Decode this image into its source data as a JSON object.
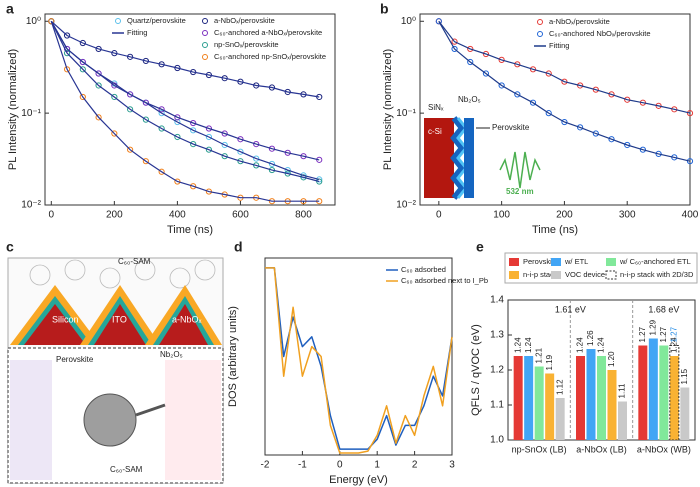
{
  "panel_labels": [
    "a",
    "b",
    "c",
    "d",
    "e"
  ],
  "diagram_c": {
    "sam_top": "C₆₀-SAM",
    "silicon": "Silicon",
    "ito": "ITO",
    "nbox": "a-NbOₓ",
    "perovskite": "Perovskite",
    "nb2o5": "Nb₂O₅",
    "sam_bottom": "C₆₀-SAM"
  },
  "chart_data": [
    {
      "type": "scatter",
      "xlabel": "Time (ns)",
      "ylabel": "PL Intensity (normalized)",
      "x": [
        0,
        50,
        100,
        150,
        200,
        250,
        300,
        350,
        400,
        450,
        500,
        550,
        600,
        650,
        700,
        750,
        800,
        850
      ],
      "xlim": [
        -20,
        900
      ],
      "xticks": [
        0,
        200,
        400,
        600,
        800
      ],
      "log_y": true,
      "ylim": [
        0.01,
        1.2
      ],
      "yticks": [
        {
          "value": 0.01,
          "label": "10⁻²"
        },
        {
          "value": 0.1,
          "label": "10⁻¹"
        },
        {
          "value": 1,
          "label": "10⁰"
        }
      ],
      "fit_label": "Fitting",
      "fit_color": "#283593",
      "series": [
        {
          "name": "Quartz/perovskite",
          "color": "#5bc0eb",
          "values": [
            1.0,
            0.5,
            0.36,
            0.27,
            0.21,
            0.16,
            0.13,
            0.1,
            0.08,
            0.065,
            0.055,
            0.045,
            0.038,
            0.032,
            0.028,
            0.024,
            0.021,
            0.019
          ]
        },
        {
          "name": "a-NbOₓ/perovskite",
          "color": "#1a237e",
          "values": [
            1.0,
            0.7,
            0.58,
            0.5,
            0.45,
            0.41,
            0.37,
            0.34,
            0.31,
            0.28,
            0.26,
            0.24,
            0.22,
            0.2,
            0.19,
            0.17,
            0.16,
            0.15
          ]
        },
        {
          "name": "C₆₀-anchored a-NbOₓ/perovskite",
          "color": "#7b2fbf",
          "values": [
            1.0,
            0.5,
            0.36,
            0.27,
            0.2,
            0.16,
            0.13,
            0.11,
            0.09,
            0.078,
            0.068,
            0.06,
            0.052,
            0.046,
            0.041,
            0.037,
            0.034,
            0.031
          ]
        },
        {
          "name": "np-SnOₓ/perovskite",
          "color": "#2a9d8f",
          "values": [
            1.0,
            0.45,
            0.3,
            0.2,
            0.15,
            0.11,
            0.085,
            0.068,
            0.055,
            0.046,
            0.04,
            0.034,
            0.03,
            0.027,
            0.024,
            0.022,
            0.02,
            0.018
          ]
        },
        {
          "name": "C₆₀-anchored np-SnOₓ/perovskite",
          "color": "#f07f1a",
          "values": [
            1.0,
            0.3,
            0.15,
            0.09,
            0.06,
            0.04,
            0.03,
            0.023,
            0.018,
            0.016,
            0.014,
            0.013,
            0.012,
            0.012,
            0.011,
            0.011,
            0.011,
            0.011
          ]
        }
      ]
    },
    {
      "type": "scatter",
      "xlabel": "Time (ns)",
      "ylabel": "PL Intensity (normalized)",
      "x": [
        0,
        25,
        50,
        75,
        100,
        125,
        150,
        175,
        200,
        225,
        250,
        275,
        300,
        325,
        350,
        375,
        400
      ],
      "xlim": [
        -30,
        400
      ],
      "xticks": [
        0,
        100,
        200,
        300,
        400
      ],
      "log_y": true,
      "ylim": [
        0.01,
        1.2
      ],
      "yticks": [
        {
          "value": 0.01,
          "label": "10⁻²"
        },
        {
          "value": 0.1,
          "label": "10⁻¹"
        },
        {
          "value": 1,
          "label": "10⁰"
        }
      ],
      "fit_label": "Fitting",
      "fit_color": "#1e3a8a",
      "annotations": [
        "SiNₓ",
        "Nb₂O₅",
        "c-Si",
        "Perovskite",
        "532 nm"
      ],
      "series": [
        {
          "name": "a-NbOₓ/perovskite",
          "color": "#e53935",
          "values": [
            1.0,
            0.6,
            0.5,
            0.44,
            0.38,
            0.34,
            0.3,
            0.27,
            0.22,
            0.2,
            0.18,
            0.16,
            0.14,
            0.13,
            0.12,
            0.11,
            0.1
          ]
        },
        {
          "name": "C₆₀-anchored NbOₓ/perovskite",
          "color": "#1e63d6",
          "values": [
            1.0,
            0.5,
            0.36,
            0.27,
            0.2,
            0.16,
            0.13,
            0.1,
            0.08,
            0.07,
            0.06,
            0.052,
            0.045,
            0.04,
            0.036,
            0.033,
            0.03
          ]
        }
      ]
    },
    {
      "type": "line",
      "xlabel": "Energy (eV)",
      "ylabel": "DOS (arbitrary units)",
      "x": [
        -2,
        -1.75,
        -1.5,
        -1.25,
        -1,
        -0.75,
        -0.5,
        -0.25,
        0,
        0.25,
        0.5,
        0.75,
        1,
        1.25,
        1.5,
        1.75,
        2,
        2.25,
        2.5,
        2.75,
        3
      ],
      "xlim": [
        -2,
        3
      ],
      "xticks": [
        -2,
        -1,
        0,
        1,
        2,
        3
      ],
      "ylim": [
        0,
        10
      ],
      "series": [
        {
          "name": "C₆₀ adsorbed",
          "color": "#1f5fbf",
          "values": [
            9.5,
            9.5,
            5,
            7,
            5.5,
            6,
            4.5,
            2,
            0.3,
            0.3,
            0.3,
            0.3,
            0.8,
            2,
            0.5,
            1.5,
            1.5,
            2.5,
            4,
            3,
            6
          ]
        },
        {
          "name": "C₆₀ adsorbed next to I_Pb",
          "color": "#f0a020",
          "values": [
            9.5,
            9.5,
            4,
            7.5,
            4,
            5.5,
            5,
            1.5,
            0.1,
            0.1,
            0.1,
            0.2,
            1,
            2.5,
            0.6,
            2,
            1,
            3,
            4.5,
            2.5,
            6
          ]
        }
      ]
    },
    {
      "type": "bar",
      "ylabel": "QFLS / qVOC (eV)",
      "categories": [
        "np-SnOx (LB)",
        "a-NbOx (LB)",
        "a-NbOx (WB)"
      ],
      "ylim": [
        1.0,
        1.4
      ],
      "yticks": [
        {
          "value": 1.0,
          "label": "1.0"
        },
        1.1,
        1.2,
        1.3,
        1.4
      ],
      "annotations": [
        "1.61 eV",
        "1.68 eV"
      ],
      "series": [
        {
          "name": "Perovskite",
          "color": "#e53935",
          "values": [
            1.24,
            1.24,
            1.27
          ],
          "value_labels": [
            "1.24",
            "1.24",
            "1.27"
          ]
        },
        {
          "name": "w/ ETL",
          "color": "#42a5f5",
          "values": [
            1.24,
            1.26,
            1.29
          ],
          "value_labels": [
            "1.24",
            "1.26",
            "1.29"
          ]
        },
        {
          "name": "w/ C₆₀-anchored ETL",
          "color": "#81e89a",
          "values": [
            1.21,
            1.24,
            1.27
          ],
          "value_labels": [
            "1.21",
            "1.24",
            "1.27"
          ]
        },
        {
          "name": "n-i-p stack",
          "color": "#f9b233",
          "values": [
            1.19,
            1.2,
            1.24
          ],
          "value_labels": [
            "1.19",
            "1.20",
            "1.24"
          ]
        },
        {
          "name": "VOC device",
          "color": "#c9c9c9",
          "values": [
            1.12,
            1.11,
            1.15
          ],
          "value_labels": [
            "1.12",
            "1.11",
            "1.15"
          ]
        },
        {
          "name": "n-i-p stack with 2D/3D",
          "color": "#1e88e5",
          "outline": "dashed",
          "values": [
            null,
            null,
            1.27
          ],
          "value_labels": [
            null,
            null,
            "1.27"
          ]
        }
      ]
    }
  ]
}
